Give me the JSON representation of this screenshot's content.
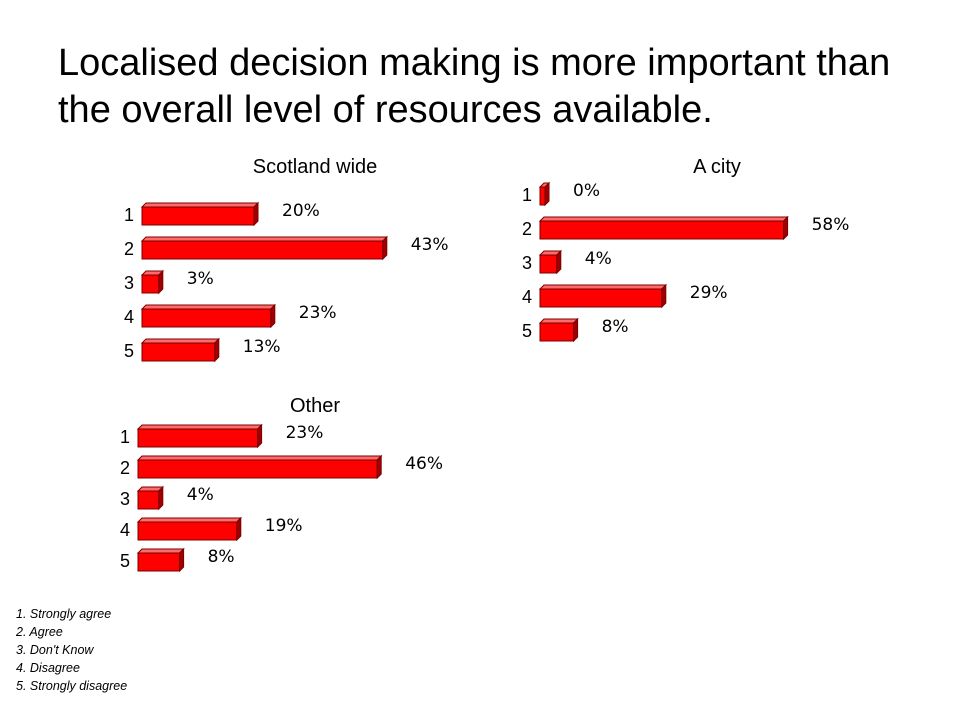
{
  "slide": {
    "title": "Localised decision making is more important than the overall level of resources available."
  },
  "colors": {
    "bar_front": "#ff0000",
    "bar_top": "#ff6b6b",
    "bar_side": "#a10000",
    "bar_outline": "#7a0000"
  },
  "chart_data": [
    {
      "type": "bar",
      "orientation": "horizontal",
      "title": "Scotland wide",
      "categories": [
        "1",
        "2",
        "3",
        "4",
        "5"
      ],
      "values": [
        20,
        43,
        3,
        23,
        13
      ],
      "value_labels": [
        "20%",
        "43%",
        "3%",
        "23%",
        "13%"
      ],
      "unit": "%"
    },
    {
      "type": "bar",
      "orientation": "horizontal",
      "title": "A city",
      "categories": [
        "1",
        "2",
        "3",
        "4",
        "5"
      ],
      "values": [
        0,
        58,
        4,
        29,
        8
      ],
      "value_labels": [
        "0%",
        "58%",
        "4%",
        "29%",
        "8%"
      ],
      "unit": "%"
    },
    {
      "type": "bar",
      "orientation": "horizontal",
      "title": "Other",
      "categories": [
        "1",
        "2",
        "3",
        "4",
        "5"
      ],
      "values": [
        23,
        46,
        4,
        19,
        8
      ],
      "value_labels": [
        "23%",
        "46%",
        "4%",
        "19%",
        "8%"
      ],
      "unit": "%"
    }
  ],
  "legend": {
    "items": [
      "1. Strongly agree",
      "2. Agree",
      "3. Don't Know",
      "4. Disagree",
      "5. Strongly disagree"
    ]
  }
}
